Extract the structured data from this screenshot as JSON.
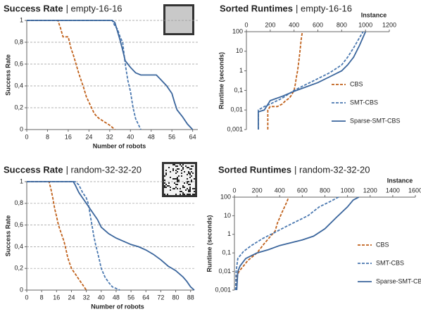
{
  "chart_data": [
    {
      "type": "line",
      "title": "Success Rate",
      "subtitle": "| empty-16-16",
      "xlabel": "Number of robots",
      "ylabel": "Success Rate",
      "xlim": [
        0,
        66
      ],
      "xticks": [
        0,
        8,
        16,
        24,
        32,
        40,
        48,
        56,
        64
      ],
      "ylim": [
        0,
        1
      ],
      "yticks": [
        0,
        {
          "value": 0.2,
          "label": "0,2"
        },
        {
          "value": 0.4,
          "label": "0,4"
        },
        {
          "value": 0.6,
          "label": "0,6"
        },
        {
          "value": 0.8,
          "label": "0,8"
        },
        1
      ],
      "grid": true,
      "log_y": false,
      "xaxis_position": "bottom",
      "series": [
        {
          "name": "CBS",
          "color": "#c0601a",
          "dashed": true,
          "x": [
            0,
            12,
            13,
            14,
            16,
            17,
            18,
            19,
            20,
            21,
            22,
            23,
            24,
            25,
            26,
            27,
            28,
            30,
            32,
            34
          ],
          "values": [
            1,
            1,
            0.93,
            0.85,
            0.85,
            0.75,
            0.68,
            0.6,
            0.52,
            0.45,
            0.38,
            0.3,
            0.25,
            0.2,
            0.15,
            0.12,
            0.1,
            0.07,
            0.04,
            0
          ]
        },
        {
          "name": "SMT-CBS",
          "color": "#4a78b0",
          "dashed": true,
          "x": [
            0,
            33,
            34,
            35,
            36,
            37,
            38,
            39,
            40,
            41,
            42,
            44
          ],
          "values": [
            1,
            1,
            0.95,
            0.92,
            0.85,
            0.8,
            0.6,
            0.45,
            0.35,
            0.2,
            0.1,
            0
          ]
        },
        {
          "name": "Sparse-SMT-CBS",
          "color": "#3a659c",
          "dashed": false,
          "x": [
            0,
            33,
            34,
            35,
            36,
            37,
            38,
            40,
            42,
            44,
            50,
            52,
            54,
            56,
            57,
            58,
            60,
            62,
            64
          ],
          "values": [
            1,
            1,
            0.98,
            0.9,
            0.82,
            0.73,
            0.63,
            0.57,
            0.52,
            0.5,
            0.5,
            0.45,
            0.4,
            0.33,
            0.25,
            0.18,
            0.12,
            0.05,
            0
          ]
        }
      ]
    },
    {
      "type": "line",
      "title": "Sorted Runtimes",
      "subtitle": "| empty-16-16",
      "xlabel": "Instance",
      "ylabel": "Runtime (seconds)",
      "xlim": [
        0,
        1200
      ],
      "xticks": [
        0,
        200,
        400,
        600,
        800,
        1000,
        1200
      ],
      "ylim": [
        0.001,
        100
      ],
      "yticks": [
        {
          "value": 0.001,
          "label": "0,001"
        },
        {
          "value": 0.01,
          "label": "0,01"
        },
        {
          "value": 0.1,
          "label": "0,1"
        },
        1,
        10,
        100
      ],
      "grid": false,
      "log_y": true,
      "xaxis_position": "top",
      "legend": "lower right",
      "series": [
        {
          "name": "CBS",
          "color": "#c0601a",
          "dashed": true,
          "x": [
            180,
            180,
            200,
            260,
            300,
            330,
            360,
            380,
            400,
            410,
            420,
            430,
            440,
            450,
            460,
            470
          ],
          "values": [
            0.001,
            0.01,
            0.015,
            0.015,
            0.02,
            0.03,
            0.04,
            0.06,
            0.1,
            0.2,
            0.5,
            1,
            3,
            10,
            40,
            100
          ]
        },
        {
          "name": "SMT-CBS",
          "color": "#4a78b0",
          "dashed": true,
          "x": [
            100,
            100,
            150,
            200,
            300,
            400,
            500,
            600,
            700,
            800,
            850,
            900,
            950,
            980
          ],
          "values": [
            0.001,
            0.01,
            0.015,
            0.02,
            0.04,
            0.1,
            0.2,
            0.4,
            0.8,
            2,
            5,
            15,
            50,
            100
          ]
        },
        {
          "name": "Sparse-SMT-CBS",
          "color": "#3a659c",
          "dashed": false,
          "x": [
            100,
            100,
            150,
            200,
            300,
            400,
            500,
            600,
            700,
            800,
            850,
            900,
            950,
            1000
          ],
          "values": [
            0.001,
            0.008,
            0.01,
            0.03,
            0.05,
            0.09,
            0.15,
            0.25,
            0.5,
            1,
            2,
            5,
            20,
            100
          ]
        }
      ]
    },
    {
      "type": "line",
      "title": "Success Rate",
      "subtitle": "| random-32-32-20",
      "xlabel": "Number of robots",
      "ylabel": "Success Rate",
      "xlim": [
        0,
        90
      ],
      "xticks": [
        0,
        8,
        16,
        24,
        32,
        40,
        48,
        56,
        64,
        72,
        80,
        88
      ],
      "ylim": [
        0,
        1
      ],
      "yticks": [
        0,
        {
          "value": 0.2,
          "label": "0,2"
        },
        {
          "value": 0.4,
          "label": "0,4"
        },
        {
          "value": 0.6,
          "label": "0,6"
        },
        {
          "value": 0.8,
          "label": "0,8"
        },
        1
      ],
      "grid": true,
      "log_y": false,
      "xaxis_position": "bottom",
      "series": [
        {
          "name": "CBS",
          "color": "#c0601a",
          "dashed": true,
          "x": [
            0,
            12,
            13,
            14,
            15,
            16,
            17,
            18,
            19,
            20,
            21,
            22,
            23,
            24,
            26,
            28,
            30,
            32
          ],
          "values": [
            1,
            1,
            0.93,
            0.85,
            0.75,
            0.68,
            0.6,
            0.55,
            0.5,
            0.45,
            0.38,
            0.3,
            0.25,
            0.2,
            0.15,
            0.1,
            0.05,
            0
          ]
        },
        {
          "name": "SMT-CBS",
          "color": "#4a78b0",
          "dashed": true,
          "x": [
            0,
            26,
            28,
            30,
            32,
            33,
            34,
            35,
            36,
            37,
            38,
            39,
            40,
            42,
            44,
            46,
            50
          ],
          "values": [
            1,
            1,
            0.97,
            0.9,
            0.85,
            0.8,
            0.7,
            0.6,
            0.5,
            0.42,
            0.35,
            0.28,
            0.2,
            0.12,
            0.07,
            0.03,
            0
          ]
        },
        {
          "name": "Sparse-SMT-CBS",
          "color": "#3a659c",
          "dashed": false,
          "x": [
            0,
            25,
            26,
            28,
            30,
            32,
            34,
            36,
            38,
            40,
            42,
            44,
            48,
            52,
            56,
            60,
            64,
            68,
            72,
            76,
            80,
            84,
            86,
            88,
            90
          ],
          "values": [
            1,
            1,
            0.97,
            0.9,
            0.85,
            0.8,
            0.75,
            0.7,
            0.65,
            0.58,
            0.55,
            0.52,
            0.48,
            0.45,
            0.42,
            0.4,
            0.37,
            0.33,
            0.28,
            0.22,
            0.18,
            0.12,
            0.08,
            0.03,
            0
          ]
        }
      ]
    },
    {
      "type": "line",
      "title": "Sorted Runtimes",
      "subtitle": "| random-32-32-20",
      "xlabel": "Instance",
      "ylabel": "Runtime (seconds)",
      "xlim": [
        0,
        1600
      ],
      "xticks": [
        0,
        200,
        400,
        600,
        800,
        1000,
        1200,
        1400,
        1600
      ],
      "ylim": [
        0.001,
        100
      ],
      "yticks": [
        {
          "value": 0.001,
          "label": "0,001"
        },
        {
          "value": 0.01,
          "label": "0,01"
        },
        {
          "value": 0.1,
          "label": "0,1"
        },
        1,
        10,
        100
      ],
      "grid": false,
      "log_y": true,
      "xaxis_position": "top",
      "legend": "lower right",
      "series": [
        {
          "name": "CBS",
          "color": "#c0601a",
          "dashed": true,
          "x": [
            20,
            20,
            40,
            80,
            120,
            200,
            260,
            320,
            360,
            380,
            420,
            460,
            480
          ],
          "values": [
            0.001,
            0.005,
            0.01,
            0.02,
            0.04,
            0.1,
            0.3,
            0.8,
            1.5,
            4,
            15,
            50,
            100
          ]
        },
        {
          "name": "SMT-CBS",
          "color": "#4a78b0",
          "dashed": true,
          "x": [
            10,
            15,
            30,
            80,
            150,
            250,
            350,
            450,
            550,
            650,
            750,
            850,
            920
          ],
          "values": [
            0.001,
            0.01,
            0.05,
            0.12,
            0.25,
            0.6,
            1.2,
            2.5,
            5,
            10,
            30,
            60,
            100
          ]
        },
        {
          "name": "Sparse-SMT-CBS",
          "color": "#3a659c",
          "dashed": false,
          "x": [
            20,
            30,
            50,
            100,
            200,
            300,
            400,
            500,
            600,
            700,
            800,
            900,
            1000,
            1050,
            1100
          ],
          "values": [
            0.001,
            0.01,
            0.02,
            0.05,
            0.1,
            0.15,
            0.25,
            0.35,
            0.5,
            0.8,
            2,
            8,
            30,
            70,
            100
          ]
        }
      ]
    }
  ]
}
